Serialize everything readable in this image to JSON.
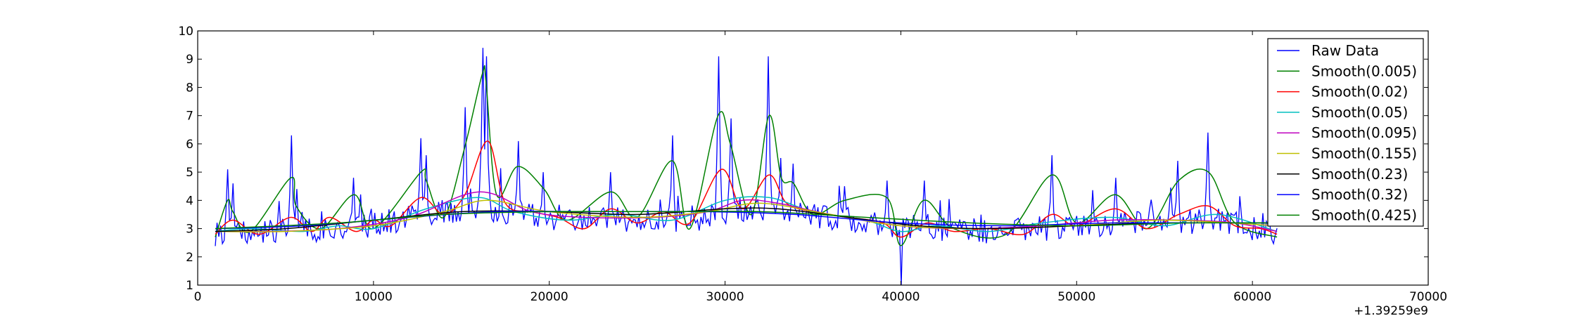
{
  "chart_data": {
    "type": "line",
    "title": "",
    "xlabel": "",
    "ylabel": "",
    "x_offset_label": "+1.39259e9",
    "xlim": [
      0,
      70000
    ],
    "ylim": [
      1,
      10
    ],
    "x_ticks": [
      0,
      10000,
      20000,
      30000,
      40000,
      50000,
      60000,
      70000
    ],
    "y_ticks": [
      1,
      2,
      3,
      4,
      5,
      6,
      7,
      8,
      9,
      10
    ],
    "x_tick_labels": [
      "0",
      "10000",
      "20000",
      "30000",
      "40000",
      "50000",
      "60000",
      "70000"
    ],
    "y_tick_labels": [
      "1",
      "2",
      "3",
      "4",
      "5",
      "6",
      "7",
      "8",
      "9",
      "10"
    ],
    "grid": false,
    "legend_position": "top-right",
    "raw_series": {
      "name": "Raw Data",
      "color": "#0000ff",
      "x_start": 1000,
      "x_end": 61400,
      "points": 600,
      "baseline": [
        [
          1000,
          2.8
        ],
        [
          5000,
          2.9
        ],
        [
          10000,
          3.1
        ],
        [
          13000,
          3.5
        ],
        [
          16000,
          3.7
        ],
        [
          20000,
          3.4
        ],
        [
          25000,
          3.3
        ],
        [
          28000,
          3.3
        ],
        [
          31000,
          3.7
        ],
        [
          34000,
          3.6
        ],
        [
          38000,
          3.2
        ],
        [
          42000,
          3.0
        ],
        [
          46000,
          2.9
        ],
        [
          50000,
          3.1
        ],
        [
          54000,
          3.2
        ],
        [
          58000,
          3.3
        ],
        [
          61400,
          2.8
        ]
      ],
      "noise_amplitude": 0.45,
      "peaks": [
        [
          1700,
          5.1
        ],
        [
          2000,
          4.6
        ],
        [
          5300,
          6.3
        ],
        [
          5600,
          4.4
        ],
        [
          8900,
          4.8
        ],
        [
          12700,
          6.2
        ],
        [
          13000,
          5.6
        ],
        [
          15200,
          7.3
        ],
        [
          16200,
          9.4
        ],
        [
          16400,
          9.1
        ],
        [
          18200,
          6.1
        ],
        [
          19700,
          5.0
        ],
        [
          23500,
          5.0
        ],
        [
          27000,
          6.3
        ],
        [
          29600,
          9.1
        ],
        [
          30300,
          6.9
        ],
        [
          32500,
          9.1
        ],
        [
          33200,
          5.5
        ],
        [
          33900,
          5.3
        ],
        [
          36800,
          4.5
        ],
        [
          39200,
          4.7
        ],
        [
          41300,
          4.7
        ],
        [
          48600,
          5.6
        ],
        [
          52200,
          4.8
        ],
        [
          55800,
          5.4
        ],
        [
          57500,
          6.4
        ]
      ],
      "dips": [
        [
          40000,
          1.0
        ]
      ]
    },
    "series": [
      {
        "name": "Smooth(0.005)",
        "color": "#008000",
        "x": [
          1000,
          1700,
          2000,
          3000,
          5300,
          5600,
          7000,
          8900,
          10000,
          12700,
          13000,
          14000,
          15200,
          16200,
          16400,
          17000,
          18200,
          19700,
          21000,
          23500,
          25000,
          27000,
          28000,
          29600,
          30300,
          31500,
          32500,
          33200,
          33900,
          35000,
          36800,
          39200,
          40000,
          41300,
          43000,
          46000,
          48600,
          50000,
          52200,
          54000,
          55800,
          57500,
          59000,
          61400
        ],
        "y": [
          2.7,
          4.0,
          3.6,
          2.9,
          4.8,
          3.8,
          3.0,
          4.2,
          3.0,
          5.0,
          4.7,
          3.4,
          5.9,
          8.5,
          8.2,
          4.2,
          5.2,
          4.4,
          3.3,
          4.3,
          3.4,
          5.4,
          3.0,
          7.0,
          6.0,
          3.5,
          7.0,
          4.8,
          4.6,
          3.5,
          4.0,
          4.1,
          2.4,
          4.0,
          3.0,
          2.8,
          4.9,
          3.2,
          4.2,
          3.0,
          4.7,
          5.0,
          3.2,
          2.7
        ]
      },
      {
        "name": "Smooth(0.02)",
        "color": "#ff0000",
        "x": [
          1000,
          2000,
          3500,
          5300,
          6500,
          7500,
          9000,
          10000,
          11000,
          12700,
          14000,
          15200,
          16500,
          17500,
          19000,
          20500,
          22000,
          23500,
          25000,
          26500,
          28000,
          29800,
          31000,
          32500,
          33500,
          35000,
          37000,
          39000,
          40000,
          41500,
          43000,
          45000,
          47000,
          48600,
          50000,
          52200,
          54000,
          55800,
          57500,
          59000,
          60500,
          61400
        ],
        "y": [
          2.8,
          3.3,
          2.8,
          3.4,
          2.9,
          3.4,
          2.9,
          3.3,
          3.1,
          4.1,
          3.5,
          4.2,
          6.1,
          3.9,
          3.6,
          3.4,
          3.0,
          3.7,
          3.2,
          3.6,
          3.2,
          5.1,
          3.7,
          4.9,
          3.9,
          3.6,
          3.4,
          3.2,
          2.7,
          3.2,
          2.9,
          3.0,
          2.8,
          3.5,
          3.1,
          3.7,
          3.0,
          3.5,
          3.8,
          3.1,
          3.0,
          2.8
        ]
      },
      {
        "name": "Smooth(0.05)",
        "color": "#00bfbf",
        "x": [
          1000,
          3000,
          6000,
          8000,
          10000,
          13000,
          16000,
          18000,
          21000,
          24000,
          27000,
          30000,
          32500,
          35000,
          38000,
          40000,
          42000,
          45000,
          48000,
          52000,
          55000,
          58000,
          61400
        ],
        "y": [
          2.9,
          3.0,
          2.9,
          3.1,
          3.0,
          3.7,
          4.1,
          3.6,
          3.3,
          3.5,
          3.3,
          4.0,
          4.1,
          3.6,
          3.3,
          2.9,
          3.1,
          2.9,
          3.2,
          3.4,
          3.1,
          3.5,
          2.9
        ]
      },
      {
        "name": "Smooth(0.095)",
        "color": "#bf00bf",
        "x": [
          1000,
          4000,
          8000,
          12000,
          16000,
          19000,
          22000,
          26000,
          29000,
          31000,
          33000,
          36000,
          40000,
          44000,
          48000,
          52000,
          56000,
          59000,
          61400
        ],
        "y": [
          2.9,
          2.9,
          3.0,
          3.4,
          4.3,
          3.6,
          3.4,
          3.4,
          3.6,
          4.0,
          3.9,
          3.5,
          3.1,
          3.0,
          3.1,
          3.3,
          3.3,
          3.2,
          2.9
        ]
      },
      {
        "name": "Smooth(0.155)",
        "color": "#bfbf00",
        "x": [
          1000,
          5000,
          10000,
          14000,
          16500,
          20000,
          25000,
          29000,
          32000,
          36000,
          40000,
          45000,
          50000,
          55000,
          61400
        ],
        "y": [
          2.9,
          2.9,
          3.1,
          3.6,
          4.0,
          3.6,
          3.4,
          3.6,
          3.9,
          3.5,
          3.1,
          3.0,
          3.1,
          3.3,
          3.1
        ]
      },
      {
        "name": "Smooth(0.23)",
        "color": "#000000",
        "x": [
          1000,
          5000,
          10000,
          15000,
          20000,
          25000,
          30000,
          33000,
          37000,
          41000,
          45000,
          50000,
          55000,
          61400
        ],
        "y": [
          2.9,
          3.0,
          3.3,
          3.6,
          3.6,
          3.5,
          3.7,
          3.7,
          3.4,
          3.1,
          3.0,
          3.1,
          3.2,
          3.2
        ]
      },
      {
        "name": "Smooth(0.32)",
        "color": "#0000ff",
        "x": [
          1000,
          6000,
          12000,
          17000,
          23000,
          29000,
          34000,
          40000,
          46000,
          52000,
          61400
        ],
        "y": [
          3.0,
          3.1,
          3.4,
          3.6,
          3.6,
          3.6,
          3.5,
          3.2,
          3.1,
          3.2,
          3.2
        ]
      },
      {
        "name": "Smooth(0.425)",
        "color": "#008000",
        "x": [
          1000,
          8000,
          14000,
          20000,
          26000,
          32000,
          38000,
          44000,
          50000,
          56000,
          61400
        ],
        "y": [
          3.0,
          3.2,
          3.5,
          3.6,
          3.6,
          3.6,
          3.4,
          3.2,
          3.1,
          3.2,
          3.2
        ]
      }
    ]
  }
}
